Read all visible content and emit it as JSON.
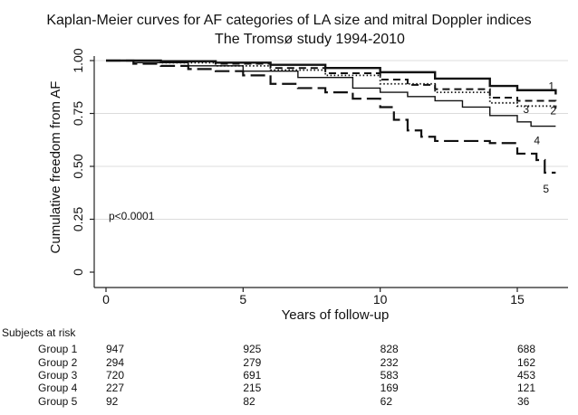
{
  "chart_data": {
    "type": "line",
    "title": "Kaplan-Meier curves for AF categories of LA size and mitral Doppler indices",
    "subtitle": "The Tromsø study 1994-2010",
    "xlabel": "Years of follow-up",
    "ylabel": "Cumulative freedom from AF",
    "xlim": [
      0,
      16.5
    ],
    "ylim": [
      0,
      1.0
    ],
    "xticks": [
      0,
      5,
      10,
      15
    ],
    "yticks": [
      "0",
      "0.25",
      "0.50",
      "0.75",
      "1.00"
    ],
    "ytick_values": [
      0,
      0.25,
      0.5,
      0.75,
      1.0
    ],
    "grid": true,
    "annotation": "p<0.0001",
    "series": [
      {
        "name": "1",
        "style": "solid-thick",
        "points": [
          [
            0,
            1.0
          ],
          [
            2,
            0.997
          ],
          [
            4,
            0.99
          ],
          [
            6,
            0.98
          ],
          [
            8,
            0.965
          ],
          [
            10,
            0.945
          ],
          [
            12,
            0.915
          ],
          [
            14,
            0.88
          ],
          [
            15,
            0.86
          ],
          [
            16.4,
            0.84
          ]
        ]
      },
      {
        "name": "2",
        "style": "dashed",
        "points": [
          [
            0,
            1.0
          ],
          [
            2,
            0.995
          ],
          [
            4,
            0.985
          ],
          [
            6,
            0.965
          ],
          [
            8,
            0.94
          ],
          [
            10,
            0.91
          ],
          [
            11,
            0.885
          ],
          [
            12,
            0.865
          ],
          [
            14,
            0.825
          ],
          [
            15,
            0.81
          ],
          [
            16.4,
            0.78
          ]
        ]
      },
      {
        "name": "3",
        "style": "dotted",
        "points": [
          [
            0,
            1.0
          ],
          [
            2,
            0.99
          ],
          [
            4,
            0.975
          ],
          [
            6,
            0.955
          ],
          [
            8,
            0.93
          ],
          [
            10,
            0.89
          ],
          [
            12,
            0.85
          ],
          [
            14,
            0.8
          ],
          [
            15,
            0.785
          ],
          [
            16.4,
            0.77
          ]
        ]
      },
      {
        "name": "4",
        "style": "solid-thin",
        "points": [
          [
            0,
            1.0
          ],
          [
            1,
            0.99
          ],
          [
            3,
            0.975
          ],
          [
            5,
            0.95
          ],
          [
            7,
            0.92
          ],
          [
            9,
            0.87
          ],
          [
            10,
            0.85
          ],
          [
            11,
            0.83
          ],
          [
            12,
            0.81
          ],
          [
            13,
            0.78
          ],
          [
            14,
            0.74
          ],
          [
            15,
            0.71
          ],
          [
            15.5,
            0.69
          ],
          [
            16.4,
            0.69
          ]
        ]
      },
      {
        "name": "5",
        "style": "long-dash",
        "points": [
          [
            0,
            1.0
          ],
          [
            1,
            0.985
          ],
          [
            2,
            0.975
          ],
          [
            3,
            0.96
          ],
          [
            4,
            0.95
          ],
          [
            5,
            0.93
          ],
          [
            6,
            0.89
          ],
          [
            7,
            0.87
          ],
          [
            8,
            0.85
          ],
          [
            9,
            0.82
          ],
          [
            10,
            0.78
          ],
          [
            10.5,
            0.72
          ],
          [
            11,
            0.67
          ],
          [
            11.5,
            0.64
          ],
          [
            12,
            0.62
          ],
          [
            13,
            0.62
          ],
          [
            14,
            0.61
          ],
          [
            15,
            0.56
          ],
          [
            15.7,
            0.53
          ],
          [
            16,
            0.47
          ],
          [
            16.4,
            0.47
          ]
        ]
      }
    ],
    "risk_table": {
      "header": "Subjects at risk",
      "times": [
        0,
        5,
        10,
        15
      ],
      "rows": [
        {
          "label": "Group 1",
          "values": [
            "947",
            "925",
            "828",
            "688"
          ]
        },
        {
          "label": "Group 2",
          "values": [
            "294",
            "279",
            "232",
            "162"
          ]
        },
        {
          "label": "Group 3",
          "values": [
            "720",
            "691",
            "583",
            "453"
          ]
        },
        {
          "label": "Group 4",
          "values": [
            "227",
            "215",
            "169",
            "121"
          ]
        },
        {
          "label": "Group 5",
          "values": [
            "92",
            "82",
            "62",
            "36"
          ]
        }
      ]
    },
    "colors": {
      "line": "#111111",
      "grid": "#dcdcdc",
      "background": "#ffffff"
    }
  }
}
